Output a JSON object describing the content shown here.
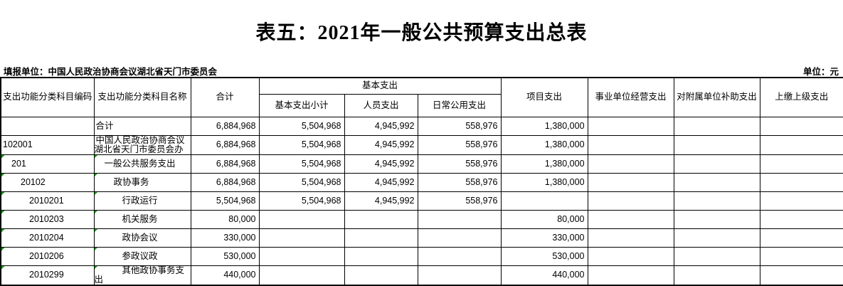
{
  "title": "表五：2021年一般公共预算支出总表",
  "meta": {
    "reporting_unit": "填报单位：中国人民政治协商会议湖北省天门市委员会",
    "unit": "单位：元"
  },
  "colors": {
    "flag_green": "#00A000",
    "border": "#000000"
  },
  "table": {
    "headers": {
      "code": "支出功能分类科目编码",
      "name": "支出功能分类科目名称",
      "total": "合计",
      "basic_group": "基本支出",
      "basic_subtotal": "基本支出小计",
      "personnel": "人员支出",
      "daily_public": "日常公用支出",
      "project": "项目支出",
      "operating": "事业单位经营支出",
      "subsidy": "对附属单位补助支出",
      "upper": "上缴上级支出"
    },
    "rows": [
      {
        "code": "",
        "name": "合计",
        "level": 0,
        "flag": false,
        "values": [
          "6,884,968",
          "5,504,968",
          "4,945,992",
          "558,976",
          "1,380,000",
          "",
          "",
          ""
        ]
      },
      {
        "code": "102001",
        "name": "中国人民政治协商会议湖北省天门市委员会办",
        "level": 0,
        "flag": false,
        "values": [
          "6,884,968",
          "5,504,968",
          "4,945,992",
          "558,976",
          "1,380,000",
          "",
          "",
          ""
        ]
      },
      {
        "code": "201",
        "name": "一般公共服务支出",
        "level": 1,
        "flag": true,
        "values": [
          "6,884,968",
          "5,504,968",
          "4,945,992",
          "558,976",
          "1,380,000",
          "",
          "",
          ""
        ]
      },
      {
        "code": "20102",
        "name": "政协事务",
        "level": 2,
        "flag": true,
        "values": [
          "6,884,968",
          "5,504,968",
          "4,945,992",
          "558,976",
          "1,380,000",
          "",
          "",
          ""
        ]
      },
      {
        "code": "2010201",
        "name": "行政运行",
        "level": 3,
        "flag": true,
        "values": [
          "5,504,968",
          "5,504,968",
          "4,945,992",
          "558,976",
          "",
          "",
          "",
          ""
        ]
      },
      {
        "code": "2010203",
        "name": "机关服务",
        "level": 3,
        "flag": true,
        "values": [
          "80,000",
          "",
          "",
          "",
          "80,000",
          "",
          "",
          ""
        ]
      },
      {
        "code": "2010204",
        "name": "政协会议",
        "level": 3,
        "flag": true,
        "values": [
          "330,000",
          "",
          "",
          "",
          "330,000",
          "",
          "",
          ""
        ]
      },
      {
        "code": "2010206",
        "name": "参政议政",
        "level": 3,
        "flag": true,
        "values": [
          "530,000",
          "",
          "",
          "",
          "530,000",
          "",
          "",
          ""
        ]
      },
      {
        "code": "2010299",
        "name": "其他政协事务支出",
        "level": 3,
        "flag": true,
        "values": [
          "440,000",
          "",
          "",
          "",
          "440,000",
          "",
          "",
          ""
        ]
      }
    ]
  }
}
